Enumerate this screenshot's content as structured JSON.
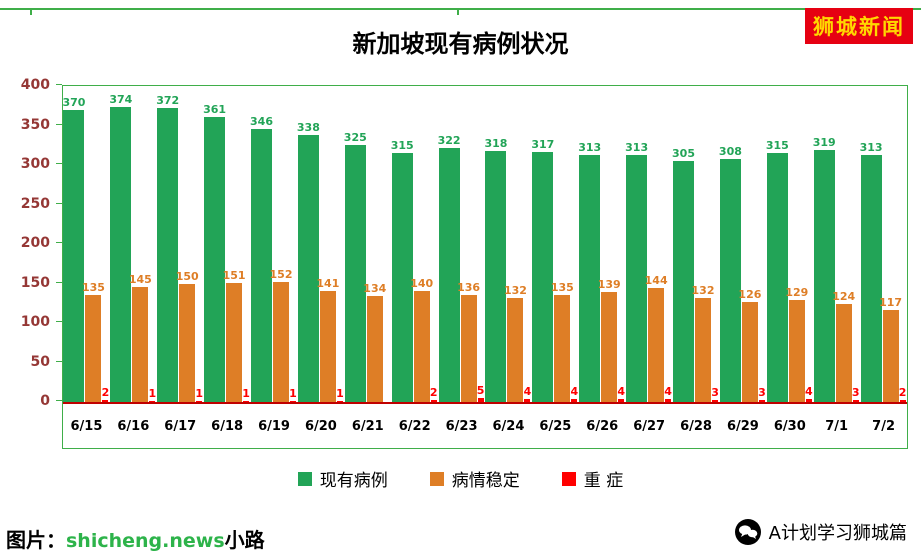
{
  "header": {
    "title": "新加坡现有病例状况",
    "logo": "狮城新闻"
  },
  "chart_data": {
    "type": "bar",
    "title": "新加坡现有病例状况",
    "categories": [
      "6/15",
      "6/16",
      "6/17",
      "6/18",
      "6/19",
      "6/20",
      "6/21",
      "6/22",
      "6/23",
      "6/24",
      "6/25",
      "6/26",
      "6/27",
      "6/28",
      "6/29",
      "6/30",
      "7/1",
      "7/2"
    ],
    "series": [
      {
        "name": "现有病例",
        "color": "#22a457",
        "values": [
          370,
          374,
          372,
          361,
          346,
          338,
          325,
          315,
          322,
          318,
          317,
          313,
          313,
          305,
          308,
          315,
          319,
          313
        ]
      },
      {
        "name": "病情稳定",
        "color": "#de7e26",
        "values": [
          135,
          145,
          150,
          151,
          152,
          141,
          134,
          140,
          136,
          132,
          135,
          139,
          144,
          132,
          126,
          129,
          124,
          117
        ]
      },
      {
        "name": "重 症",
        "color": "#ff0000",
        "values": [
          2,
          1,
          1,
          1,
          1,
          1,
          0,
          2,
          5,
          4,
          4,
          4,
          4,
          3,
          3,
          4,
          3,
          2
        ]
      }
    ],
    "ylim": [
      0,
      400
    ],
    "yticks": [
      0,
      50,
      100,
      150,
      200,
      250,
      300,
      350,
      400
    ],
    "grid": false,
    "legend_position": "bottom",
    "axis_label_color": "#953735",
    "frame_color": "#3fae49",
    "baseline_color": "#c00000"
  },
  "legend": {
    "items": [
      "现有病例",
      "病情稳定",
      "重 症"
    ]
  },
  "footer": {
    "watermark_prefix": "图片：",
    "watermark_green": "shicheng.news",
    "watermark_suffix": "小路",
    "source_label": "A计划学习狮城篇"
  }
}
